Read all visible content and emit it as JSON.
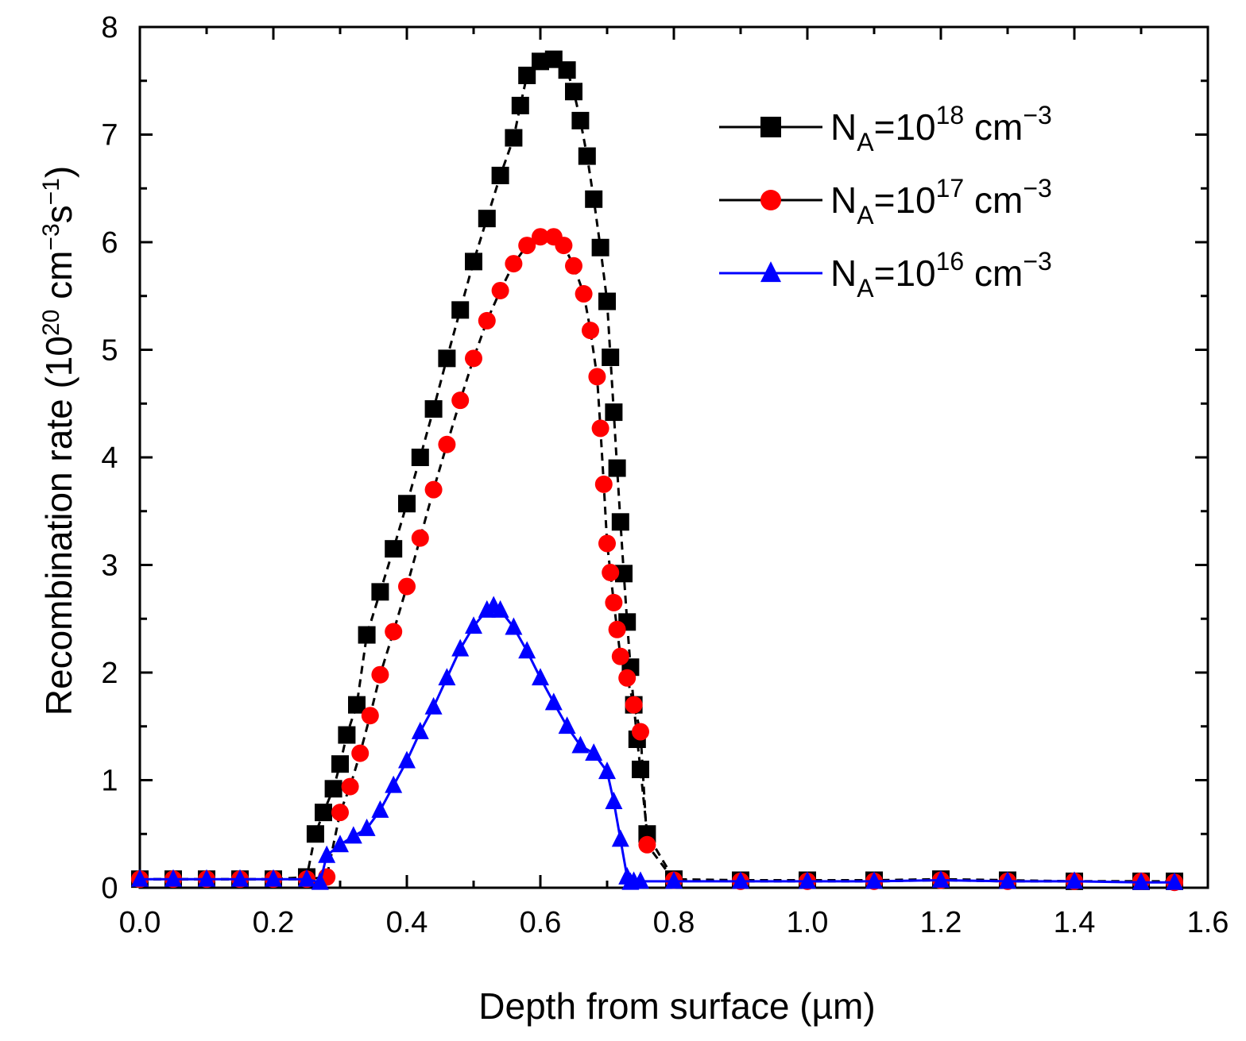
{
  "chart_data": {
    "type": "scatter",
    "title": "",
    "xlabel": "Depth from surface (µm)",
    "ylabel_main": "Recombination rate (10",
    "ylabel_exp1": "20",
    "ylabel_mid": " cm",
    "ylabel_exp2": "−3",
    "ylabel_mid2": "s",
    "ylabel_exp3": "−1",
    "ylabel_end": ")",
    "xlim": [
      0.0,
      1.6
    ],
    "ylim": [
      0,
      8
    ],
    "xticks": [
      "0.0",
      "0.2",
      "0.4",
      "0.6",
      "0.8",
      "1.0",
      "1.2",
      "1.4",
      "1.6"
    ],
    "yticks": [
      "0",
      "1",
      "2",
      "3",
      "4",
      "5",
      "6",
      "7",
      "8"
    ],
    "legend_position": "top-right",
    "series": [
      {
        "name": "NA=10^18 cm^-3",
        "label_base": "N",
        "label_sub": "A",
        "label_mid": "=10",
        "label_sup": "18",
        "label_unit": " cm",
        "label_unit_sup": "−3",
        "color": "#000000",
        "marker": "square",
        "x": [
          0.0,
          0.05,
          0.1,
          0.15,
          0.2,
          0.25,
          0.263,
          0.275,
          0.29,
          0.3,
          0.31,
          0.325,
          0.34,
          0.36,
          0.38,
          0.4,
          0.42,
          0.44,
          0.46,
          0.48,
          0.5,
          0.52,
          0.54,
          0.56,
          0.57,
          0.58,
          0.6,
          0.62,
          0.64,
          0.65,
          0.66,
          0.67,
          0.68,
          0.69,
          0.7,
          0.705,
          0.71,
          0.715,
          0.72,
          0.725,
          0.73,
          0.735,
          0.74,
          0.745,
          0.75,
          0.76,
          0.8,
          0.9,
          1.0,
          1.1,
          1.2,
          1.3,
          1.4,
          1.5,
          1.55
        ],
        "y": [
          0.08,
          0.08,
          0.08,
          0.08,
          0.08,
          0.1,
          0.5,
          0.7,
          0.92,
          1.15,
          1.42,
          1.7,
          2.35,
          2.75,
          3.15,
          3.57,
          4.0,
          4.45,
          4.92,
          5.37,
          5.82,
          6.22,
          6.62,
          6.97,
          7.27,
          7.55,
          7.68,
          7.7,
          7.6,
          7.4,
          7.13,
          6.8,
          6.4,
          5.95,
          5.45,
          4.93,
          4.42,
          3.9,
          3.4,
          2.92,
          2.47,
          2.05,
          1.7,
          1.38,
          1.1,
          0.5,
          0.08,
          0.07,
          0.07,
          0.07,
          0.08,
          0.07,
          0.06,
          0.06,
          0.06
        ]
      },
      {
        "name": "NA=10^17 cm^-3",
        "label_base": "N",
        "label_sub": "A",
        "label_mid": "=10",
        "label_sup": "17",
        "label_unit": " cm",
        "label_unit_sup": "−3",
        "color": "#ff0000",
        "marker": "circle",
        "x": [
          0.0,
          0.05,
          0.1,
          0.15,
          0.2,
          0.25,
          0.28,
          0.3,
          0.315,
          0.33,
          0.345,
          0.36,
          0.38,
          0.4,
          0.42,
          0.44,
          0.46,
          0.48,
          0.5,
          0.52,
          0.54,
          0.56,
          0.58,
          0.6,
          0.62,
          0.635,
          0.65,
          0.665,
          0.675,
          0.685,
          0.69,
          0.695,
          0.7,
          0.705,
          0.71,
          0.715,
          0.72,
          0.73,
          0.74,
          0.75,
          0.76,
          0.8,
          0.9,
          1.0,
          1.1,
          1.2,
          1.3,
          1.4,
          1.5,
          1.55
        ],
        "y": [
          0.08,
          0.08,
          0.08,
          0.08,
          0.08,
          0.08,
          0.1,
          0.7,
          0.94,
          1.25,
          1.6,
          1.98,
          2.38,
          2.8,
          3.25,
          3.7,
          4.12,
          4.53,
          4.92,
          5.27,
          5.55,
          5.8,
          5.97,
          6.05,
          6.05,
          5.97,
          5.78,
          5.52,
          5.18,
          4.75,
          4.27,
          3.75,
          3.2,
          2.93,
          2.65,
          2.4,
          2.15,
          1.95,
          1.7,
          1.45,
          0.4,
          0.07,
          0.06,
          0.06,
          0.06,
          0.07,
          0.06,
          0.06,
          0.06,
          0.05
        ]
      },
      {
        "name": "NA=10^16 cm^-3",
        "label_base": "N",
        "label_sub": "A",
        "label_mid": "=10",
        "label_sup": "16",
        "label_unit": " cm",
        "label_unit_sup": "−3",
        "color": "#0000ff",
        "marker": "triangle",
        "x": [
          0.0,
          0.05,
          0.1,
          0.15,
          0.2,
          0.25,
          0.27,
          0.28,
          0.3,
          0.32,
          0.34,
          0.36,
          0.38,
          0.4,
          0.42,
          0.44,
          0.46,
          0.48,
          0.5,
          0.52,
          0.53,
          0.54,
          0.56,
          0.58,
          0.6,
          0.62,
          0.64,
          0.66,
          0.68,
          0.7,
          0.71,
          0.72,
          0.73,
          0.735,
          0.74,
          0.75,
          0.8,
          0.9,
          1.0,
          1.1,
          1.2,
          1.3,
          1.4,
          1.5,
          1.55
        ],
        "y": [
          0.08,
          0.08,
          0.08,
          0.08,
          0.08,
          0.08,
          0.05,
          0.3,
          0.4,
          0.48,
          0.55,
          0.72,
          0.95,
          1.18,
          1.45,
          1.68,
          1.95,
          2.22,
          2.43,
          2.58,
          2.62,
          2.58,
          2.42,
          2.2,
          1.95,
          1.72,
          1.5,
          1.32,
          1.25,
          1.08,
          0.8,
          0.45,
          0.1,
          0.05,
          0.06,
          0.06,
          0.06,
          0.06,
          0.06,
          0.06,
          0.07,
          0.06,
          0.06,
          0.05,
          0.05
        ]
      }
    ]
  }
}
